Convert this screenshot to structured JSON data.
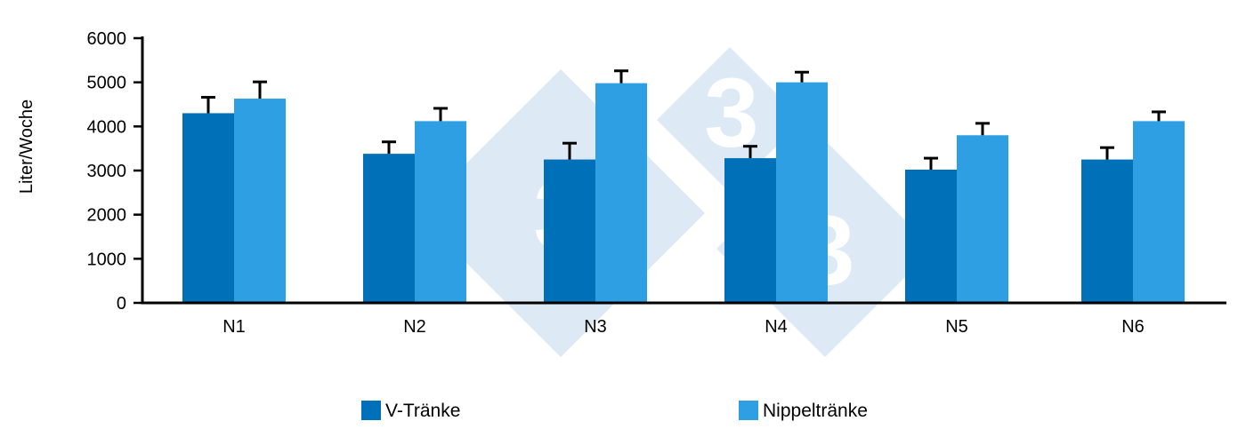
{
  "chart_data": {
    "type": "bar",
    "ylabel": "Liter/Woche",
    "xlabel": "",
    "ylim": [
      0,
      6000
    ],
    "yticks": [
      0,
      1000,
      2000,
      3000,
      4000,
      5000,
      6000
    ],
    "categories": [
      "N1",
      "N2",
      "N3",
      "N4",
      "N5",
      "N6"
    ],
    "series": [
      {
        "name": "V-Tränke",
        "color": "#0070b8",
        "values": [
          4300,
          3380,
          3250,
          3280,
          3020,
          3250
        ],
        "error": [
          360,
          270,
          370,
          270,
          260,
          270
        ]
      },
      {
        "name": "Nippeltränke",
        "color": "#2f9fe3",
        "values": [
          4630,
          4120,
          4980,
          5000,
          3800,
          4120
        ],
        "error": [
          380,
          290,
          280,
          230,
          270,
          210
        ]
      }
    ],
    "legend_position": "bottom",
    "grid": false,
    "error_bars": "upper"
  },
  "watermark": {
    "text": "3",
    "color": "#dde9f4"
  }
}
